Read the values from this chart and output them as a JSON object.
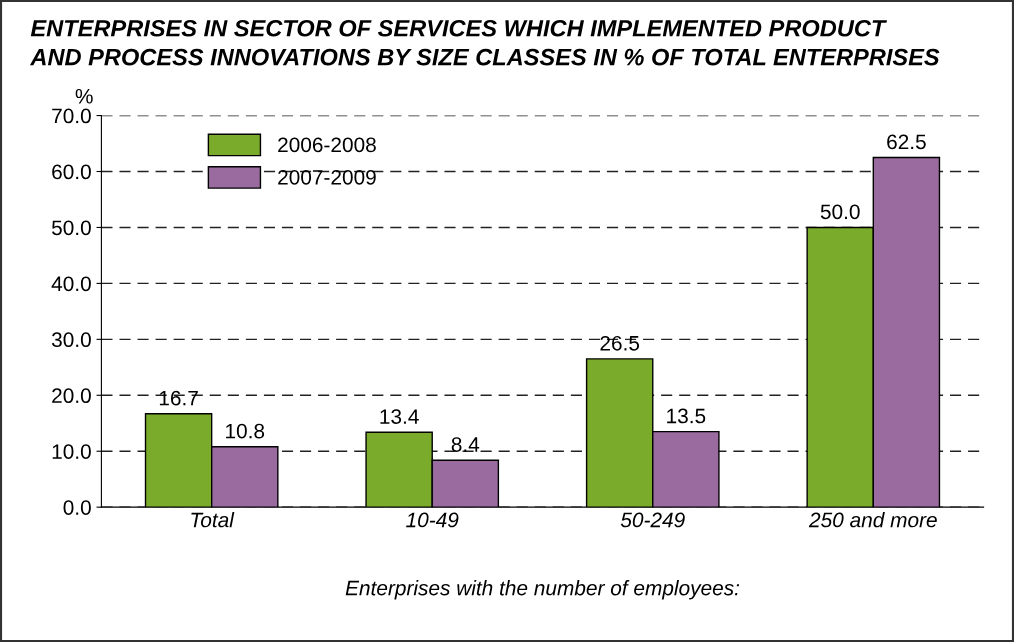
{
  "chart_data": {
    "type": "bar",
    "title": "ENTERPRISES IN SECTOR OF SERVICES WHICH IMPLEMENTED PRODUCT\nAND PROCESS INNOVATIONS BY SIZE CLASSES IN % OF TOTAL ENTERPRISES",
    "ylabel": "%",
    "xlabel": "Enterprises with the number of employees:",
    "categories": [
      "Total",
      "10-49",
      "50-249",
      "250 and more"
    ],
    "series": [
      {
        "name": "2006-2008",
        "color": "#7bab2b",
        "values": [
          16.7,
          13.4,
          26.5,
          50.0
        ],
        "value_labels": [
          "16.7",
          "13.4",
          "26.5",
          "50.0"
        ]
      },
      {
        "name": "2007-2009",
        "color": "#9a6b9e",
        "values": [
          10.8,
          8.4,
          13.5,
          62.5
        ],
        "value_labels": [
          "10.8",
          "8.4",
          "13.5",
          "62.5"
        ]
      }
    ],
    "ylim": [
      0,
      70
    ],
    "yticks": [
      {
        "value": 0,
        "label": "0.0"
      },
      {
        "value": 10,
        "label": "10.0"
      },
      {
        "value": 20,
        "label": "20.0"
      },
      {
        "value": 30,
        "label": "30.0"
      },
      {
        "value": 40,
        "label": "40.0"
      },
      {
        "value": 50,
        "label": "50.0"
      },
      {
        "value": 60,
        "label": "60.0"
      },
      {
        "value": 70,
        "label": "70.0"
      }
    ],
    "grid": "y",
    "legend": "top left"
  }
}
